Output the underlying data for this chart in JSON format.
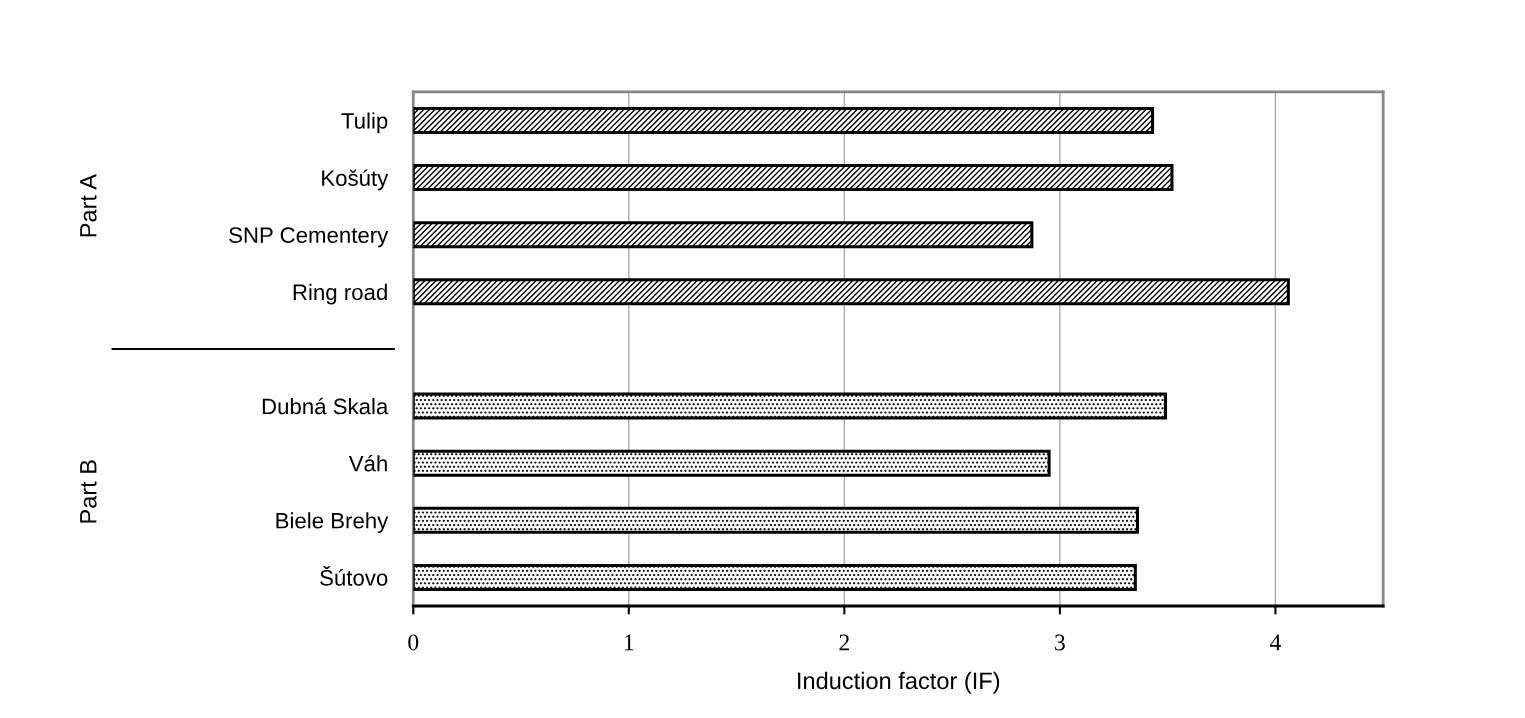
{
  "chart_data": {
    "type": "bar",
    "orientation": "horizontal",
    "xlabel": "Induction factor (IF)",
    "categories": [
      "Tulip",
      "Košúty",
      "SNP Cementery",
      "Ring road",
      null,
      "Dubná Skala",
      "Váh",
      "Biele Brehy",
      "Šútovo"
    ],
    "series": [
      {
        "color": "#000000",
        "values": [
          3.43,
          3.52,
          2.87,
          4.06,
          null,
          null,
          null,
          null,
          null
        ]
      },
      {
        "color": "#000000",
        "values": [
          null,
          null,
          null,
          null,
          null,
          3.49,
          2.95,
          3.36,
          3.35
        ]
      }
    ],
    "xlim": [
      0,
      4.5
    ],
    "xticks": [
      0,
      1,
      2,
      3,
      4
    ],
    "grid": "x",
    "annotations": [
      "Part A",
      "Part B"
    ]
  }
}
